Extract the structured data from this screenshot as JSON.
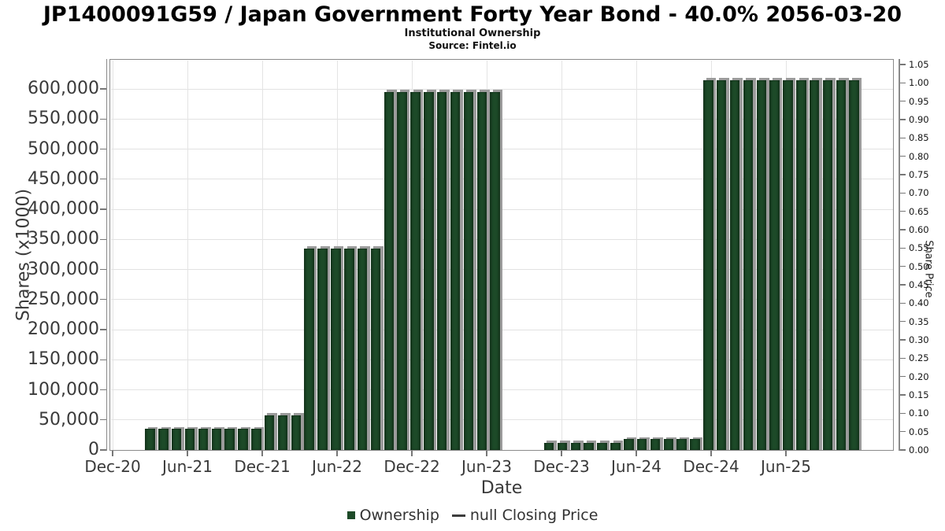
{
  "title": "JP1400091G59 / Japan Government Forty Year Bond - 40.0% 2056-03-20",
  "subtitle": "Institutional Ownership",
  "source": "Source: Fintel.io",
  "colors": {
    "bar": "#1d4a28",
    "bar_shadow": "#9b9b9b",
    "grid": "#e2e2e2",
    "axis": "#8a8a8a",
    "text": "#3a3a3a"
  },
  "chart_data": {
    "type": "bar",
    "title": "JP1400091G59 / Japan Government Forty Year Bond - 40.0% 2056-03-20",
    "subtitle": "Institutional Ownership",
    "source": "Source: Fintel.io",
    "xlabel": "Date",
    "ylabel_left": "Shares (x1000)",
    "ylabel_right": "Share Price",
    "grid": true,
    "legend_position": "bottom-center",
    "x_ticks": [
      "Dec-20",
      "Jun-21",
      "Dec-21",
      "Jun-22",
      "Dec-22",
      "Jun-23",
      "Dec-23",
      "Jun-24",
      "Dec-24",
      "Jun-25"
    ],
    "y_left_ticks": [
      "0",
      "50,000",
      "100,000",
      "150,000",
      "200,000",
      "250,000",
      "300,000",
      "350,000",
      "400,000",
      "450,000",
      "500,000",
      "550,000",
      "600,000"
    ],
    "y_right_ticks": [
      "0.00",
      "0.05",
      "0.10",
      "0.15",
      "0.20",
      "0.25",
      "0.30",
      "0.35",
      "0.40",
      "0.45",
      "0.50",
      "0.55",
      "0.60",
      "0.65",
      "0.70",
      "0.75",
      "0.80",
      "0.85",
      "0.90",
      "0.95",
      "1.00",
      "1.05"
    ],
    "y_left_range": [
      0,
      647000
    ],
    "y_right_range": [
      0,
      1.06
    ],
    "legend": [
      {
        "label": "Ownership",
        "marker": "square",
        "color": "#1d4a28"
      },
      {
        "label": "null Closing Price",
        "marker": "line",
        "color": "#3d3d3d"
      }
    ],
    "series": [
      {
        "name": "Ownership",
        "units": "shares (x1000)",
        "points": [
          {
            "date": "Mar-21",
            "value": 35000
          },
          {
            "date": "Apr-21",
            "value": 35000
          },
          {
            "date": "May-21",
            "value": 35000
          },
          {
            "date": "Jun-21",
            "value": 35000
          },
          {
            "date": "Jul-21",
            "value": 35000
          },
          {
            "date": "Aug-21",
            "value": 35000
          },
          {
            "date": "Sep-21",
            "value": 35000
          },
          {
            "date": "Oct-21",
            "value": 35000
          },
          {
            "date": "Nov-21",
            "value": 35000
          },
          {
            "date": "Dec-21",
            "value": 58000
          },
          {
            "date": "Jan-22",
            "value": 58000
          },
          {
            "date": "Feb-22",
            "value": 58000
          },
          {
            "date": "Mar-22",
            "value": 335000
          },
          {
            "date": "Apr-22",
            "value": 335000
          },
          {
            "date": "May-22",
            "value": 335000
          },
          {
            "date": "Jun-22",
            "value": 335000
          },
          {
            "date": "Jul-22",
            "value": 335000
          },
          {
            "date": "Aug-22",
            "value": 335000
          },
          {
            "date": "Sep-22",
            "value": 595000
          },
          {
            "date": "Oct-22",
            "value": 595000
          },
          {
            "date": "Nov-22",
            "value": 595000
          },
          {
            "date": "Dec-22",
            "value": 595000
          },
          {
            "date": "Jan-23",
            "value": 595000
          },
          {
            "date": "Feb-23",
            "value": 595000
          },
          {
            "date": "Mar-23",
            "value": 595000
          },
          {
            "date": "Apr-23",
            "value": 595000
          },
          {
            "date": "May-23",
            "value": 595000
          },
          {
            "date": "Nov-23",
            "value": 12000
          },
          {
            "date": "Dec-23",
            "value": 12000
          },
          {
            "date": "Jan-24",
            "value": 12000
          },
          {
            "date": "Feb-24",
            "value": 12000
          },
          {
            "date": "Mar-24",
            "value": 12000
          },
          {
            "date": "Apr-24",
            "value": 12000
          },
          {
            "date": "May-24",
            "value": 18000
          },
          {
            "date": "Jun-24",
            "value": 18000
          },
          {
            "date": "Jul-24",
            "value": 18000
          },
          {
            "date": "Aug-24",
            "value": 18000
          },
          {
            "date": "Sep-24",
            "value": 18000
          },
          {
            "date": "Oct-24",
            "value": 18000
          },
          {
            "date": "Nov-24",
            "value": 615000
          },
          {
            "date": "Dec-24",
            "value": 615000
          },
          {
            "date": "Jan-25",
            "value": 615000
          },
          {
            "date": "Feb-25",
            "value": 615000
          },
          {
            "date": "Mar-25",
            "value": 615000
          },
          {
            "date": "Apr-25",
            "value": 615000
          },
          {
            "date": "May-25",
            "value": 615000
          },
          {
            "date": "Jun-25",
            "value": 615000
          },
          {
            "date": "Jul-25",
            "value": 615000
          },
          {
            "date": "Aug-25",
            "value": 615000
          },
          {
            "date": "Sep-25",
            "value": 615000
          },
          {
            "date": "Oct-25",
            "value": 615000
          }
        ]
      },
      {
        "name": "null Closing Price",
        "points": []
      }
    ]
  }
}
